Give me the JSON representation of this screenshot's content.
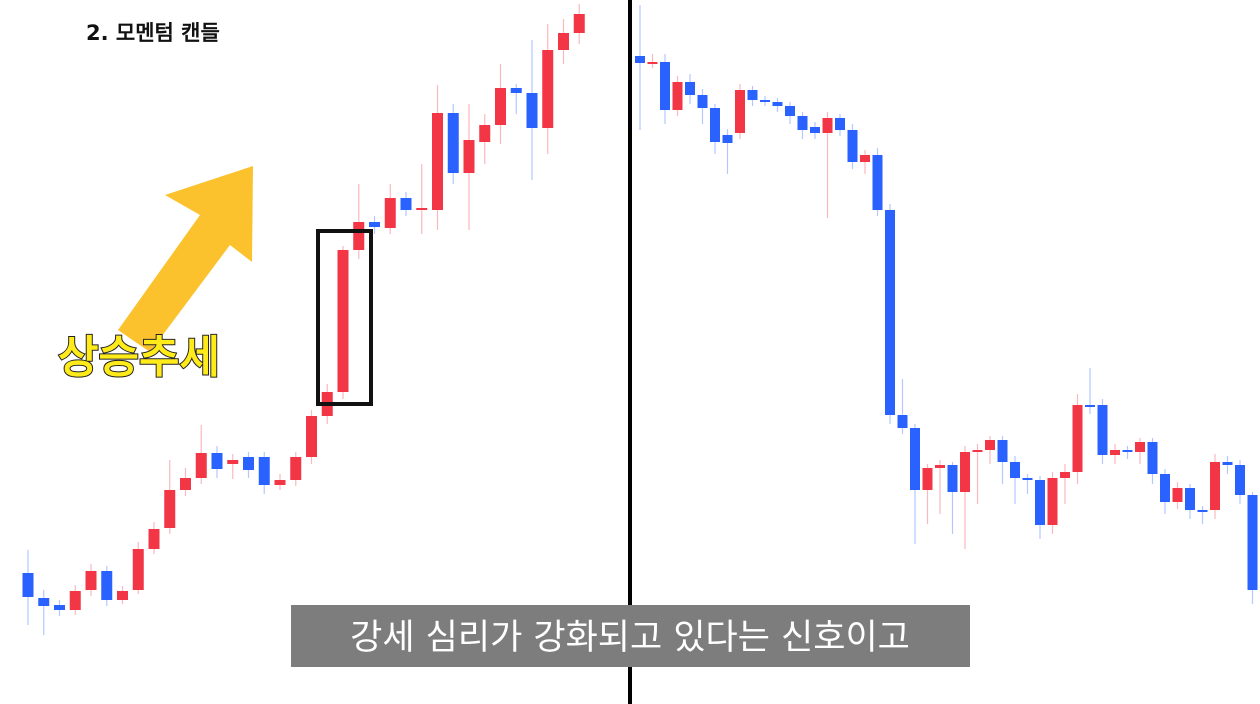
{
  "caption": "강세 심리가 강화되고 있다는 신호이고",
  "chart_data": [
    {
      "type": "candlestick",
      "title": "2. 모멘텀 캔들",
      "annotation": "상승추세",
      "up_color": "#f23645",
      "down_color": "#2962ff",
      "ylim": [
        0,
        704
      ],
      "open": [
        131,
        106,
        99,
        94,
        114,
        133,
        104,
        114,
        155,
        176,
        214,
        226,
        251,
        240,
        247,
        247,
        219,
        224,
        247,
        288,
        312,
        454,
        482,
        476,
        506,
        494,
        494,
        591,
        531,
        562,
        579,
        616,
        611,
        576,
        654,
        671
      ],
      "high": [
        154,
        114,
        104,
        119,
        140,
        138,
        118,
        162,
        182,
        244,
        236,
        279,
        258,
        250,
        252,
        252,
        230,
        252,
        294,
        320,
        458,
        520,
        488,
        520,
        512,
        540,
        619,
        600,
        600,
        590,
        640,
        620,
        664,
        680,
        685,
        700
      ],
      "low": [
        79,
        69,
        88,
        89,
        108,
        98,
        100,
        110,
        150,
        170,
        208,
        220,
        226,
        225,
        226,
        210,
        214,
        218,
        240,
        280,
        305,
        445,
        470,
        470,
        488,
        470,
        474,
        520,
        474,
        540,
        560,
        590,
        524,
        550,
        640,
        660
      ],
      "close": [
        107,
        98,
        94,
        113,
        133,
        104,
        113,
        155,
        175,
        214,
        226,
        251,
        235,
        244,
        234,
        219,
        224,
        247,
        288,
        312,
        454,
        482,
        477,
        506,
        494,
        496,
        591,
        531,
        564,
        579,
        616,
        611,
        576,
        654,
        671,
        690
      ]
    },
    {
      "type": "candlestick",
      "up_color": "#f23645",
      "down_color": "#2962ff",
      "ylim": [
        0,
        704
      ],
      "open": [
        648,
        641,
        642,
        594,
        622,
        609,
        596,
        569,
        571,
        614,
        604,
        602,
        598,
        588,
        577,
        571,
        586,
        574,
        542,
        549,
        494,
        289,
        276,
        214,
        236,
        239,
        212,
        252,
        254,
        264,
        242,
        226,
        224,
        179,
        226,
        232,
        299,
        299,
        249,
        254,
        252,
        262,
        230,
        202,
        216,
        194,
        194,
        242,
        239,
        209
      ],
      "high": [
        699,
        650,
        650,
        628,
        630,
        615,
        600,
        575,
        620,
        618,
        608,
        606,
        602,
        592,
        582,
        592,
        590,
        580,
        554,
        556,
        500,
        325,
        280,
        240,
        244,
        242,
        258,
        260,
        268,
        268,
        248,
        230,
        228,
        232,
        240,
        310,
        336,
        305,
        260,
        258,
        266,
        266,
        235,
        222,
        220,
        198,
        250,
        248,
        244,
        212
      ],
      "low": [
        574,
        636,
        580,
        588,
        600,
        580,
        550,
        530,
        565,
        598,
        598,
        592,
        580,
        565,
        565,
        486,
        568,
        535,
        530,
        488,
        280,
        270,
        160,
        180,
        190,
        170,
        155,
        200,
        240,
        220,
        200,
        210,
        165,
        170,
        200,
        220,
        290,
        240,
        240,
        245,
        240,
        220,
        190,
        195,
        185,
        180,
        185,
        230,
        200,
        100
      ],
      "close": [
        641,
        642,
        594,
        622,
        609,
        596,
        562,
        561,
        614,
        604,
        602,
        598,
        588,
        574,
        571,
        586,
        574,
        542,
        549,
        494,
        289,
        276,
        214,
        236,
        239,
        212,
        252,
        254,
        264,
        242,
        226,
        224,
        179,
        226,
        232,
        299,
        297,
        249,
        254,
        252,
        262,
        230,
        202,
        216,
        194,
        192,
        242,
        239,
        209,
        114
      ]
    }
  ]
}
